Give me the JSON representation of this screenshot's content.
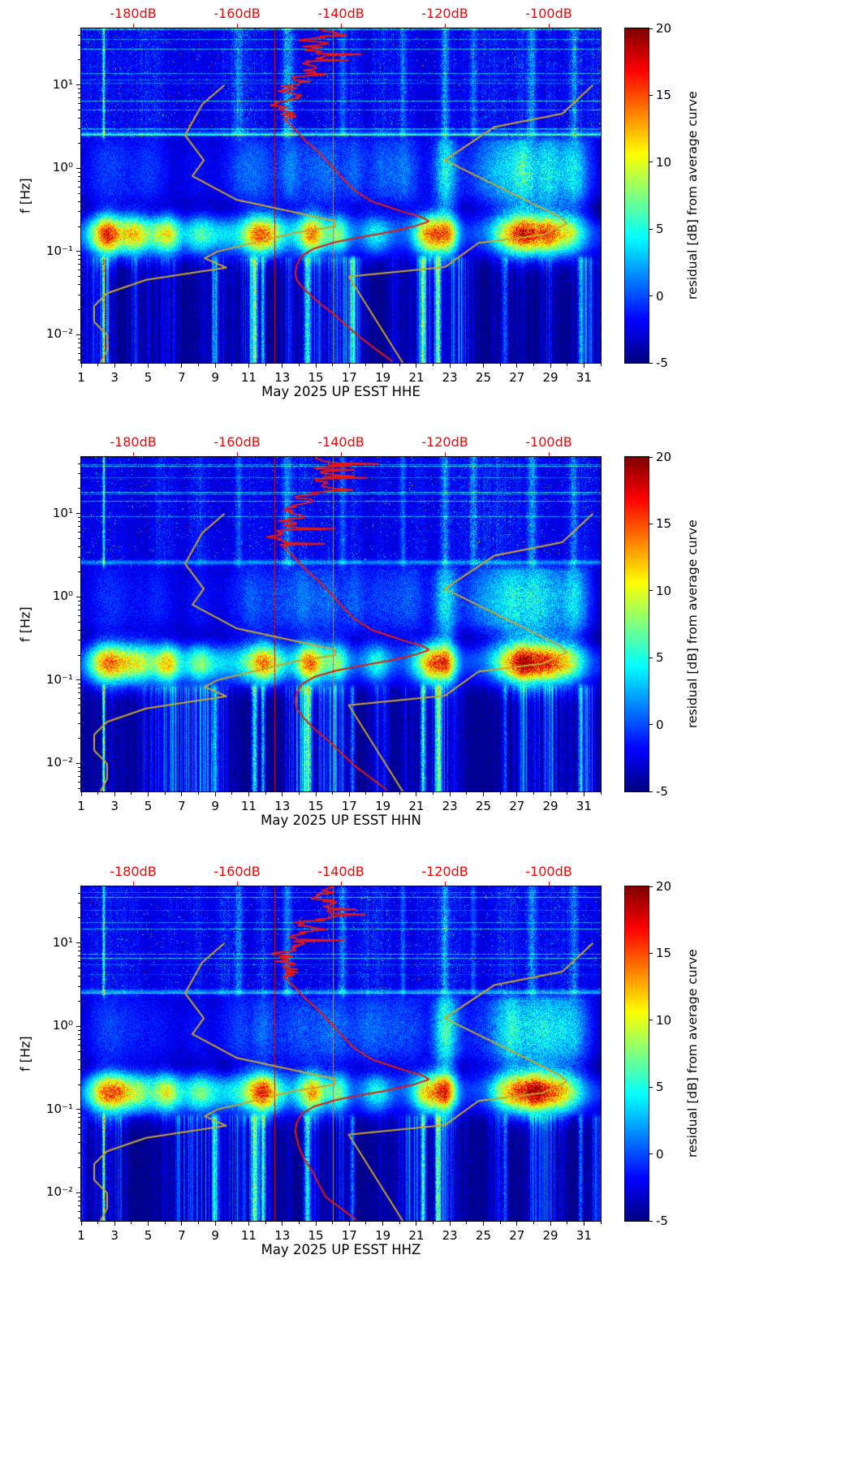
{
  "chart_data": {
    "type": "heatmap",
    "subtype": "seismic-noise-residual-spectrogram",
    "ylabel": "f [Hz]",
    "layout": {
      "day_min": 1,
      "day_max": 32,
      "f_min_hz": 0.0046,
      "f_max_hz": 48,
      "y_scale": "log",
      "top_db_min": -190,
      "top_db_max": -90,
      "clim": [
        -5,
        20
      ],
      "grid": false,
      "legend": "none"
    },
    "x_ticks": [
      1,
      3,
      5,
      7,
      9,
      11,
      13,
      15,
      17,
      19,
      21,
      23,
      25,
      27,
      29,
      31
    ],
    "x_minor_ticks": [
      2,
      4,
      6,
      8,
      10,
      12,
      14,
      16,
      18,
      20,
      22,
      24,
      26,
      28,
      30,
      32
    ],
    "y_ticks": [
      {
        "f": 10,
        "label": "10¹"
      },
      {
        "f": 1,
        "label": "10⁰"
      },
      {
        "f": 0.1,
        "label": "10⁻¹"
      },
      {
        "f": 0.01,
        "label": "10⁻²"
      }
    ],
    "top_axis": {
      "color": "#ff0000",
      "ticks": [
        {
          "db": -180,
          "label": "-180dB"
        },
        {
          "db": -160,
          "label": "-160dB"
        },
        {
          "db": -140,
          "label": "-140dB"
        },
        {
          "db": -120,
          "label": "-120dB"
        },
        {
          "db": -100,
          "label": "-100dB"
        }
      ]
    },
    "colorbar": {
      "label": "residual [dB] from average curve",
      "min": -5,
      "max": 20,
      "ticks": [
        20,
        15,
        10,
        5,
        0,
        -5
      ]
    },
    "vlines": [
      {
        "db": -152.8,
        "color": "#cc1100",
        "width": 1
      },
      {
        "db": -141.5,
        "color": "#8a8a8a",
        "width": 1
      }
    ],
    "curves": {
      "low_noise_model": {
        "color": "#c9a42b",
        "width": 2,
        "points_f_db": [
          [
            10,
            -162.4
          ],
          [
            5.88,
            -166.7
          ],
          [
            2.5,
            -170
          ],
          [
            1.25,
            -166.4
          ],
          [
            0.806,
            -168.6
          ],
          [
            0.417,
            -160
          ],
          [
            0.233,
            -141.1
          ],
          [
            0.2,
            -141.1
          ],
          [
            0.167,
            -149
          ],
          [
            0.1,
            -163.8
          ],
          [
            0.083,
            -166.2
          ],
          [
            0.064,
            -162.1
          ],
          [
            0.0457,
            -177.5
          ],
          [
            0.0316,
            -185
          ],
          [
            0.0222,
            -187.5
          ],
          [
            0.0143,
            -187.5
          ],
          [
            0.0099,
            -185
          ],
          [
            0.0065,
            -185
          ],
          [
            0.0046,
            -186.3
          ]
        ]
      },
      "high_noise_model": {
        "color": "#c9a42b",
        "width": 2,
        "points_f_db": [
          [
            10,
            -91.5
          ],
          [
            4.55,
            -97.4
          ],
          [
            3.13,
            -110.5
          ],
          [
            1.25,
            -120
          ],
          [
            0.263,
            -98
          ],
          [
            0.217,
            -96.5
          ],
          [
            0.159,
            -101
          ],
          [
            0.127,
            -113.5
          ],
          [
            0.065,
            -120
          ],
          [
            0.05,
            -138.5
          ],
          [
            0.0046,
            -128.1
          ]
        ]
      },
      "station_psd": {
        "color": "#e61a0f",
        "width": 2,
        "points_f_db": [
          [
            48,
            -143
          ],
          [
            40,
            -141
          ],
          [
            35,
            -144
          ],
          [
            30,
            -142
          ],
          [
            25,
            -145
          ],
          [
            20,
            -143
          ],
          [
            17,
            -147
          ],
          [
            14,
            -146
          ],
          [
            12,
            -148
          ],
          [
            10,
            -149
          ],
          [
            8,
            -151
          ],
          [
            6,
            -152
          ],
          [
            5,
            -152
          ],
          [
            4,
            -151
          ],
          [
            3,
            -149
          ],
          [
            2.2,
            -147
          ],
          [
            1.6,
            -144.5
          ],
          [
            1.1,
            -142
          ],
          [
            0.8,
            -140
          ],
          [
            0.55,
            -137.5
          ],
          [
            0.4,
            -134
          ],
          [
            0.3,
            -128
          ],
          [
            0.26,
            -124.5
          ],
          [
            0.23,
            -123
          ],
          [
            0.2,
            -126
          ],
          [
            0.17,
            -131
          ],
          [
            0.15,
            -136
          ],
          [
            0.13,
            -141
          ],
          [
            0.11,
            -145
          ],
          [
            0.09,
            -147.5
          ],
          [
            0.07,
            -148.5
          ],
          [
            0.055,
            -148.8
          ],
          [
            0.045,
            -148.5
          ],
          [
            0.035,
            -147
          ],
          [
            0.025,
            -144.5
          ],
          [
            0.018,
            -141.5
          ],
          [
            0.013,
            -139
          ],
          [
            0.009,
            -136
          ],
          [
            0.0065,
            -133
          ],
          [
            0.005,
            -130.5
          ],
          [
            0.0046,
            -130
          ]
        ],
        "jitter": {
          "f_min_hz": 4,
          "amp_db": 4,
          "spike_prob": 0.1,
          "spike_amp_db": 9
        }
      }
    },
    "panels": [
      {
        "channel": "HHE",
        "xlabel": "May 2025 UP ESST  HHE",
        "texture_seed": 11,
        "jitter_seed": 101,
        "psd_low_shift_db": 0
      },
      {
        "channel": "HHN",
        "xlabel": "May 2025 UP ESST  HHN",
        "texture_seed": 29,
        "jitter_seed": 202,
        "psd_low_shift_db": -1
      },
      {
        "channel": "HHZ",
        "xlabel": "May 2025 UP ESST  HHZ",
        "texture_seed": 47,
        "jitter_seed": 303,
        "psd_low_shift_db": -7
      }
    ],
    "texture": {
      "base_db": -3.8,
      "micro_blobs": [
        [
          2.6,
          19,
          0.8
        ],
        [
          4.3,
          13,
          0.7
        ],
        [
          6.1,
          14,
          0.6
        ],
        [
          8.0,
          7,
          0.6
        ],
        [
          9.5,
          5,
          1.2
        ],
        [
          11.9,
          19,
          0.8
        ],
        [
          14.7,
          17,
          0.6
        ],
        [
          16.3,
          9,
          0.5
        ],
        [
          18.6,
          7,
          0.6
        ],
        [
          21.9,
          18,
          0.7
        ],
        [
          22.9,
          10,
          0.4
        ],
        [
          26.8,
          12,
          0.9
        ],
        [
          28.3,
          17,
          1.1
        ],
        [
          30.0,
          9,
          0.7
        ]
      ],
      "mid_blobs": [
        [
          2.6,
          5,
          1.1
        ],
        [
          5.2,
          4,
          1.0
        ],
        [
          8.0,
          3,
          0.9
        ],
        [
          10.8,
          5,
          1.0
        ],
        [
          13.5,
          6,
          1.4
        ],
        [
          16.0,
          5,
          1.2
        ],
        [
          18.5,
          5,
          1.2
        ],
        [
          20.5,
          6,
          0.8
        ],
        [
          22.7,
          12,
          0.55
        ],
        [
          24.5,
          4,
          0.8
        ],
        [
          26.5,
          9,
          1.1
        ],
        [
          28.5,
          11,
          1.1
        ],
        [
          30.5,
          8,
          0.8
        ]
      ],
      "low_cols": [
        [
          2.35,
          17,
          0.05
        ],
        [
          9.0,
          7,
          0.12
        ],
        [
          11.35,
          12,
          0.12
        ],
        [
          11.85,
          10,
          0.08
        ],
        [
          14.5,
          11,
          0.15
        ],
        [
          17.2,
          7,
          0.1
        ],
        [
          21.4,
          12,
          0.1
        ],
        [
          22.3,
          13,
          0.12
        ],
        [
          26.3,
          6,
          0.1
        ],
        [
          30.8,
          7,
          0.1
        ]
      ],
      "high_cols": [
        [
          2.35,
          11,
          0.05
        ],
        [
          10.4,
          4,
          0.15
        ],
        [
          13.3,
          5,
          0.2
        ],
        [
          16.6,
          4,
          0.15
        ],
        [
          20.2,
          4,
          0.12
        ],
        [
          22.7,
          5,
          0.15
        ],
        [
          24.4,
          4,
          0.12
        ],
        [
          27.9,
          5,
          0.2
        ],
        [
          30.4,
          4,
          0.15
        ]
      ],
      "hline_f_hz": 2.6
    }
  }
}
